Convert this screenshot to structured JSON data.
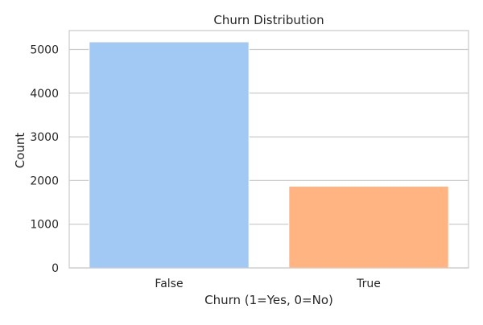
{
  "chart_data": {
    "type": "bar",
    "title": "Churn Distribution",
    "xlabel": "Churn (1=Yes, 0=No)",
    "ylabel": "Count",
    "categories": [
      "False",
      "True"
    ],
    "values": [
      5174,
      1869
    ],
    "ylim": [
      0,
      5432
    ],
    "yticks": [
      0,
      1000,
      2000,
      3000,
      4000,
      5000
    ],
    "ytick_labels": [
      "0",
      "1000",
      "2000",
      "3000",
      "4000",
      "5000"
    ],
    "colors": [
      "#a1c9f4",
      "#ffb482"
    ],
    "grid": "horizontal",
    "legend": "none"
  }
}
